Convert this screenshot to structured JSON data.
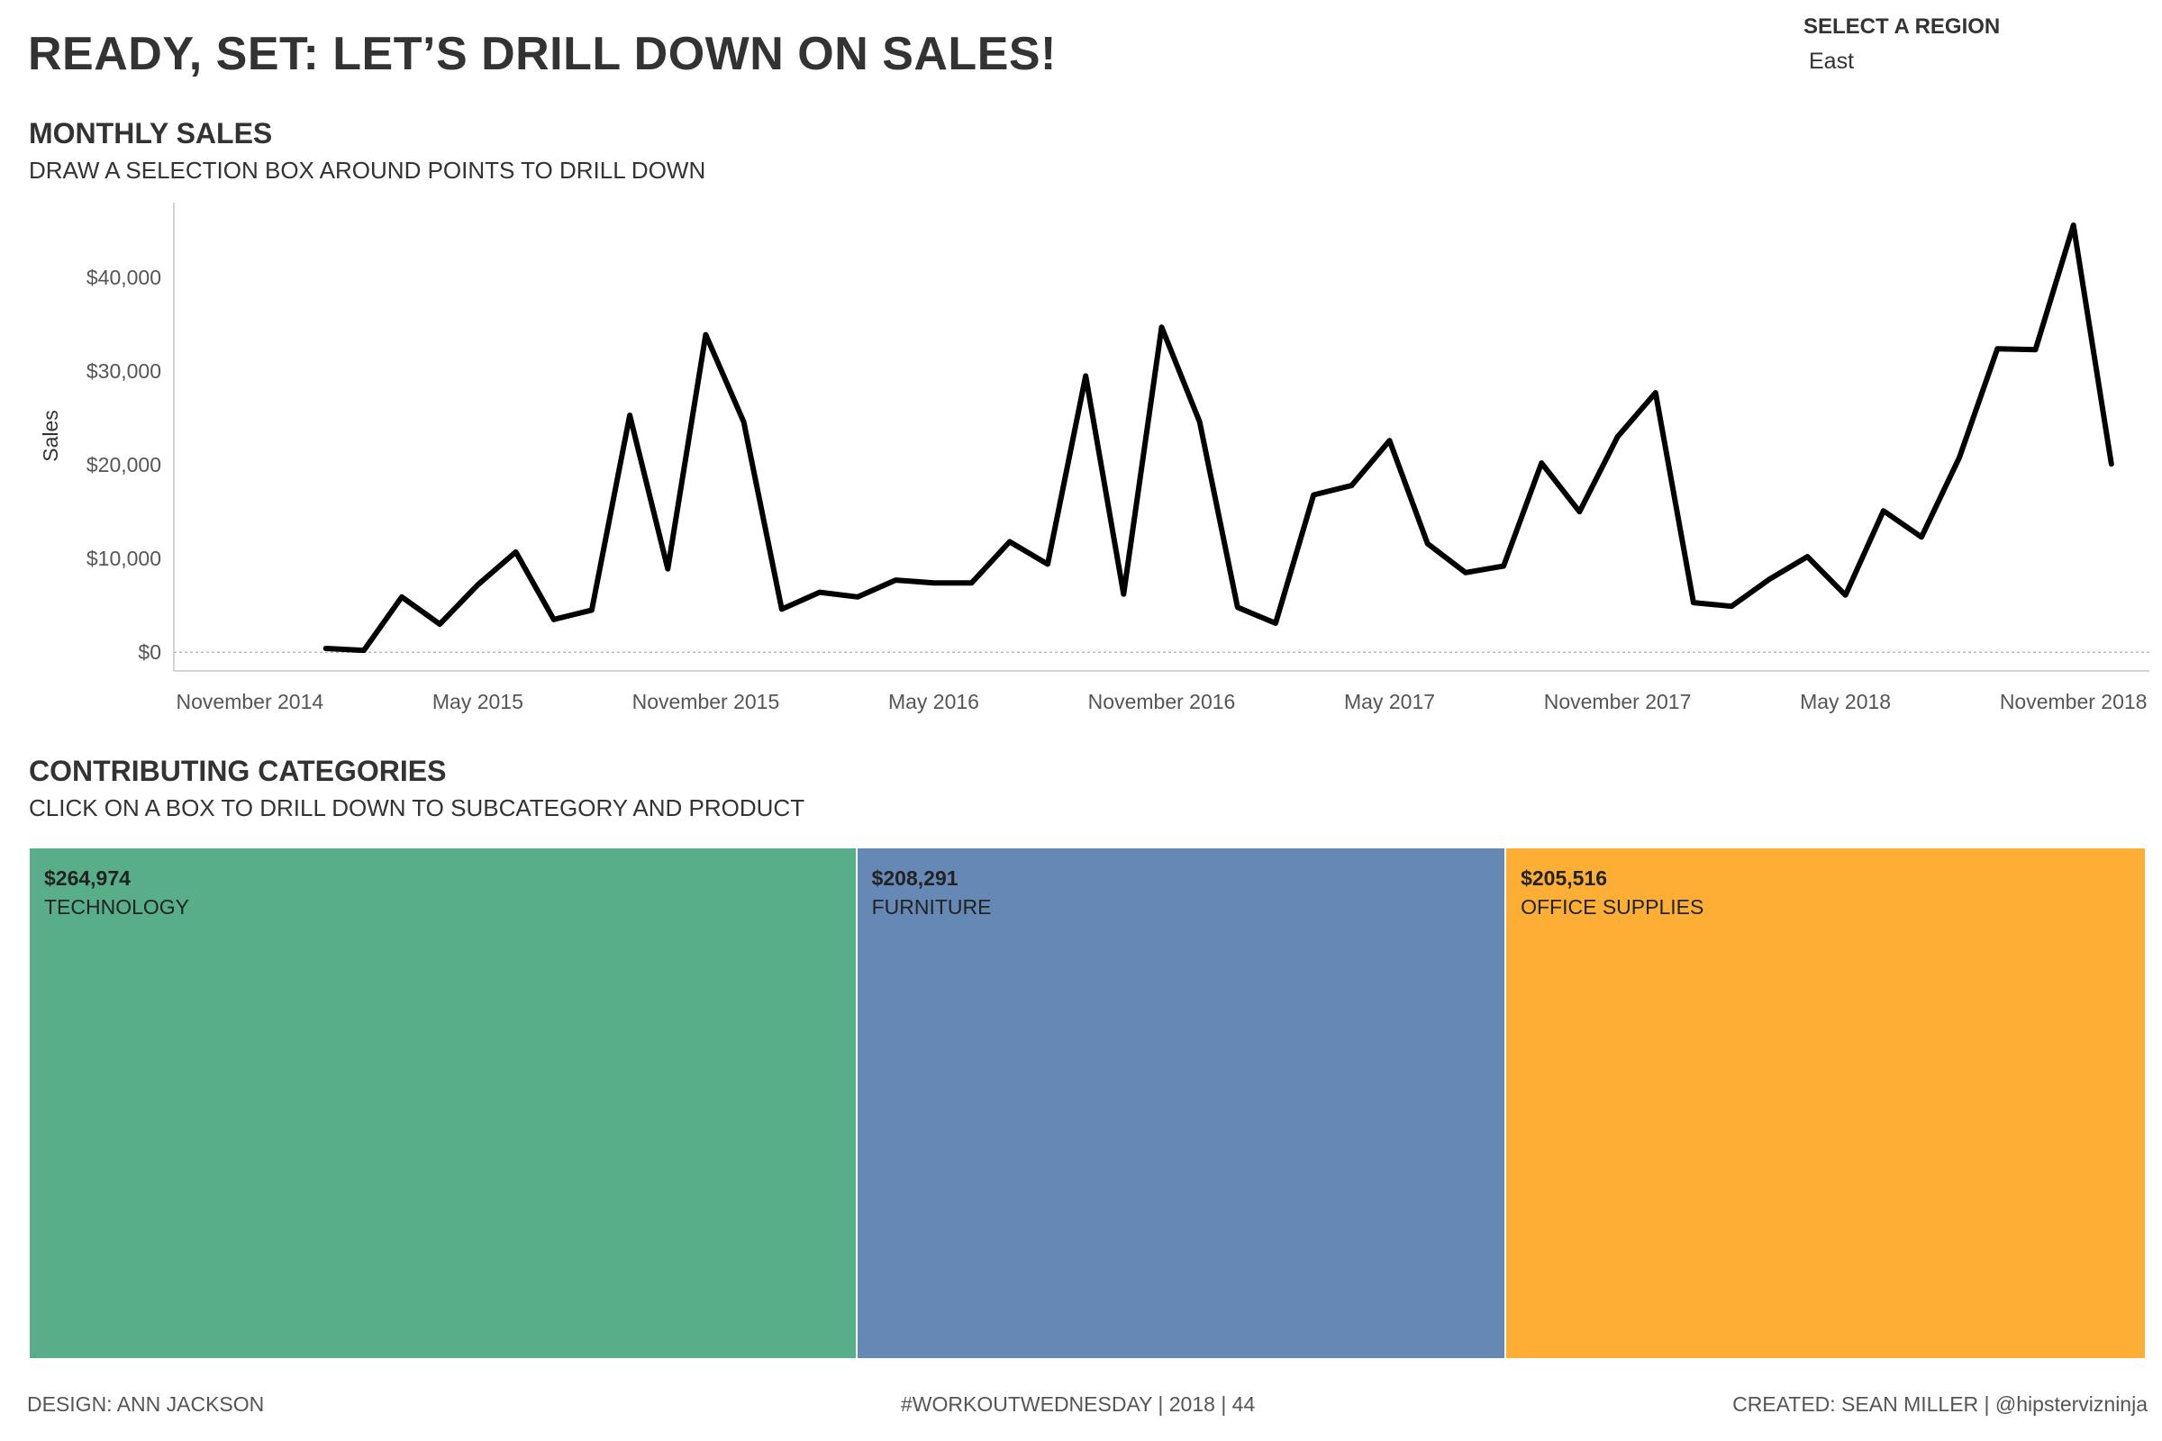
{
  "page": {
    "title": "READY, SET: LET’S DRILL DOWN ON SALES!",
    "region_filter": {
      "label": "SELECT A REGION",
      "value": "East"
    },
    "monthly_section": {
      "title": "MONTHLY SALES",
      "subtitle": "DRAW A SELECTION BOX AROUND POINTS TO DRILL DOWN"
    },
    "categories_section": {
      "title": "CONTRIBUTING CATEGORIES",
      "subtitle": "CLICK ON A BOX TO DRILL DOWN TO SUBCATEGORY AND PRODUCT"
    },
    "footer": {
      "left": "DESIGN: ANN JACKSON",
      "center": "#WORKOUTWEDNESDAY | 2018 | 44",
      "right": "CREATED: SEAN MILLER | @hipstervizninja"
    }
  },
  "chart_data": [
    {
      "type": "line",
      "title": "MONTHLY SALES",
      "subtitle": "DRAW A SELECTION BOX AROUND POINTS TO DRILL DOWN",
      "xlabel": "",
      "ylabel": "Sales",
      "x_range": [
        "2014-09",
        "2019-01"
      ],
      "ylim": [
        -2000,
        48000
      ],
      "y_ticks": [
        0,
        10000,
        20000,
        30000,
        40000
      ],
      "y_tick_labels": [
        "$0",
        "$10,000",
        "$20,000",
        "$30,000",
        "$40,000"
      ],
      "x_ticks": [
        "2014-11",
        "2015-05",
        "2015-11",
        "2016-05",
        "2016-11",
        "2017-05",
        "2017-11",
        "2018-05",
        "2018-11"
      ],
      "x_tick_labels": [
        "November 2014",
        "May 2015",
        "November 2015",
        "May 2016",
        "November 2016",
        "May 2017",
        "November 2017",
        "May 2018",
        "November 2018"
      ],
      "zero_line": "dotted",
      "grid": false,
      "line_color": "#000000",
      "x": [
        "2015-01",
        "2015-02",
        "2015-03",
        "2015-04",
        "2015-05",
        "2015-06",
        "2015-07",
        "2015-08",
        "2015-09",
        "2015-10",
        "2015-11",
        "2015-12",
        "2016-01",
        "2016-02",
        "2016-03",
        "2016-04",
        "2016-05",
        "2016-06",
        "2016-07",
        "2016-08",
        "2016-09",
        "2016-10",
        "2016-11",
        "2016-12",
        "2017-01",
        "2017-02",
        "2017-03",
        "2017-04",
        "2017-05",
        "2017-06",
        "2017-07",
        "2017-08",
        "2017-09",
        "2017-10",
        "2017-11",
        "2017-12",
        "2018-01",
        "2018-02",
        "2018-03",
        "2018-04",
        "2018-05",
        "2018-06",
        "2018-07",
        "2018-08",
        "2018-09",
        "2018-10",
        "2018-11",
        "2018-12"
      ],
      "values": [
        400,
        200,
        5900,
        3000,
        7200,
        10700,
        3500,
        4500,
        25300,
        8900,
        33900,
        24600,
        4600,
        6400,
        5900,
        7700,
        7400,
        7400,
        11800,
        9400,
        29500,
        6200,
        34700,
        24600,
        4800,
        3100,
        16800,
        17800,
        22600,
        11600,
        8500,
        9200,
        20200,
        15000,
        23000,
        27700,
        5300,
        4900,
        7800,
        10200,
        6100,
        15100,
        12300,
        20800,
        32400,
        32300,
        45600,
        20100
      ]
    },
    {
      "type": "treemap",
      "title": "CONTRIBUTING CATEGORIES",
      "subtitle": "CLICK ON A BOX TO DRILL DOWN TO SUBCATEGORY AND PRODUCT",
      "categories": [
        "TECHNOLOGY",
        "FURNITURE",
        "OFFICE SUPPLIES"
      ],
      "values": [
        264974,
        208291,
        205516
      ],
      "value_labels": [
        "$264,974",
        "$208,291",
        "$205,516"
      ],
      "colors": [
        "#59AE8A",
        "#6688B4",
        "#FCAE35"
      ]
    }
  ]
}
